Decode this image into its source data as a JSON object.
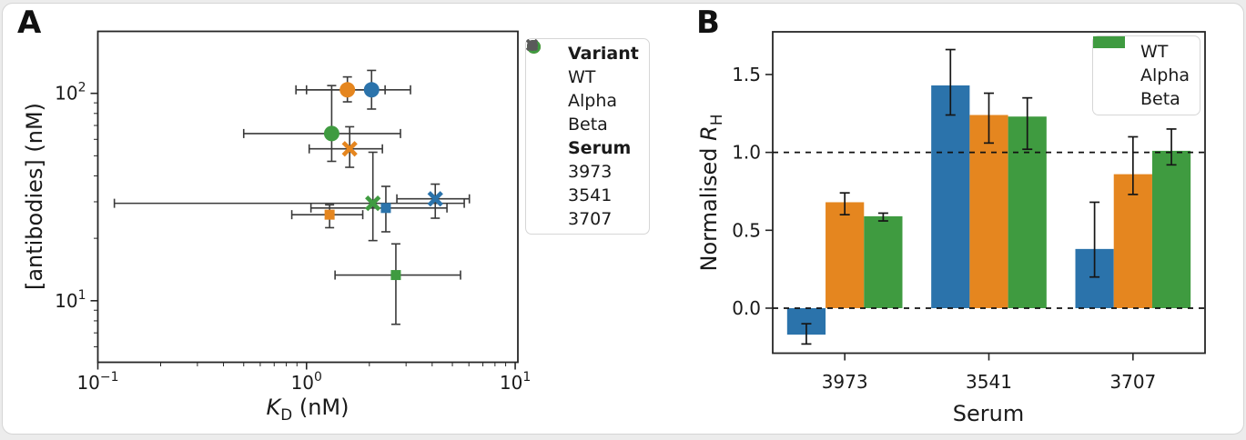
{
  "panels": {
    "a": {
      "label": "A"
    },
    "b": {
      "label": "B"
    }
  },
  "colors": {
    "WT": "#2b73ab",
    "Alpha": "#e5861f",
    "Beta": "#3f9b40",
    "serum_gray": "#5a5a5a",
    "errorbar_a": "#3a3a3a",
    "errorbar_b": "#161616",
    "spine": "#262626",
    "text": "#1a1a1a"
  },
  "panelA_labels": {
    "xlabel_it": "K",
    "xlabel_sub": "D",
    "xlabel_post": " (nM)",
    "ylabel": "[antibodies] (nM)"
  },
  "panelB_labels": {
    "xlabel": "Serum",
    "ylabel_pre": "Normalised ",
    "ylabel_it": "R",
    "ylabel_sub": "H"
  },
  "legendA": {
    "title1": "Variant",
    "variants": [
      "WT",
      "Alpha",
      "Beta"
    ],
    "title2": "Serum",
    "serums": [
      "3973",
      "3541",
      "3707"
    ]
  },
  "legendB": {
    "entries": [
      "WT",
      "Alpha",
      "Beta"
    ]
  },
  "chart_data": [
    {
      "type": "scatter",
      "panel": "A",
      "xscale": "log",
      "yscale": "log",
      "xlim": [
        0.1,
        10.3
      ],
      "ylim": [
        5.05,
        199
      ],
      "xticks": [
        {
          "v": 0.1,
          "exp": "−1"
        },
        {
          "v": 1,
          "exp": "0"
        },
        {
          "v": 10,
          "exp": "1"
        }
      ],
      "yticks": [
        {
          "v": 10,
          "exp": "1"
        },
        {
          "v": 100,
          "exp": "2"
        }
      ],
      "xminor": [
        0.2,
        0.3,
        0.4,
        0.5,
        0.6,
        0.7,
        0.8,
        0.9,
        2,
        3,
        4,
        5,
        6,
        7,
        8,
        9
      ],
      "yminor": [
        6,
        7,
        8,
        9,
        20,
        30,
        40,
        50,
        60,
        70,
        80,
        90
      ],
      "xlabel": "K_D (nM)",
      "ylabel": "[antibodies] (nM)",
      "legend_position": "outside right top",
      "points": [
        {
          "variant": "WT",
          "serum": "3973",
          "marker": "circle",
          "x": 2.05,
          "y": 104,
          "xerr": [
            1.0,
            3.15
          ],
          "yerr": [
            84,
            129
          ]
        },
        {
          "variant": "Alpha",
          "serum": "3973",
          "marker": "circle",
          "x": 1.57,
          "y": 104,
          "xerr": [
            0.89,
            2.38
          ],
          "yerr": [
            91,
            120
          ]
        },
        {
          "variant": "Beta",
          "serum": "3973",
          "marker": "circle",
          "x": 1.32,
          "y": 64,
          "xerr": [
            0.5,
            2.82
          ],
          "yerr": [
            47,
            109
          ]
        },
        {
          "variant": "Alpha",
          "serum": "3541",
          "marker": "x",
          "x": 1.61,
          "y": 54,
          "xerr": [
            1.03,
            2.31
          ],
          "yerr": [
            44,
            69
          ]
        },
        {
          "variant": "WT",
          "serum": "3541",
          "marker": "x",
          "x": 4.14,
          "y": 31,
          "xerr": [
            2.71,
            6.03
          ],
          "yerr": [
            25,
            36.5
          ]
        },
        {
          "variant": "Beta",
          "serum": "3541",
          "marker": "x",
          "x": 2.08,
          "y": 29.5,
          "xerr": [
            0.12,
            5.7
          ],
          "yerr": [
            19.5,
            52
          ]
        },
        {
          "variant": "WT",
          "serum": "3707",
          "marker": "square",
          "x": 2.4,
          "y": 28,
          "xerr": [
            1.05,
            4.71
          ],
          "yerr": [
            21.5,
            35.6
          ]
        },
        {
          "variant": "Alpha",
          "serum": "3707",
          "marker": "square",
          "x": 1.29,
          "y": 26,
          "xerr": [
            0.85,
            1.86
          ],
          "yerr": [
            22.5,
            29
          ]
        },
        {
          "variant": "Beta",
          "serum": "3707",
          "marker": "square",
          "x": 2.68,
          "y": 13.3,
          "xerr": [
            1.37,
            5.47
          ],
          "yerr": [
            7.7,
            18.8
          ]
        }
      ]
    },
    {
      "type": "bar",
      "panel": "B",
      "categories": [
        "3973",
        "3541",
        "3707"
      ],
      "series": [
        {
          "name": "WT",
          "values": [
            -0.17,
            1.43,
            0.38
          ],
          "err_lo": [
            -0.23,
            1.24,
            0.2
          ],
          "err_hi": [
            -0.1,
            1.66,
            0.68
          ]
        },
        {
          "name": "Alpha",
          "values": [
            0.68,
            1.24,
            0.86
          ],
          "err_lo": [
            0.6,
            1.06,
            0.73
          ],
          "err_hi": [
            0.74,
            1.38,
            1.1
          ]
        },
        {
          "name": "Beta",
          "values": [
            0.59,
            1.23,
            1.01
          ],
          "err_lo": [
            0.56,
            1.02,
            0.92
          ],
          "err_hi": [
            0.61,
            1.35,
            1.15
          ]
        }
      ],
      "ylim": [
        -0.289,
        1.774
      ],
      "yticks": [
        {
          "v": 0.0,
          "label": "0.0"
        },
        {
          "v": 0.5,
          "label": "0.5"
        },
        {
          "v": 1.0,
          "label": "1.0"
        },
        {
          "v": 1.5,
          "label": "1.5"
        }
      ],
      "hlines": [
        0.0,
        1.0
      ],
      "grid": false,
      "legend_position": "inside top right",
      "xlabel": "Serum",
      "ylabel": "Normalised R_H"
    }
  ]
}
